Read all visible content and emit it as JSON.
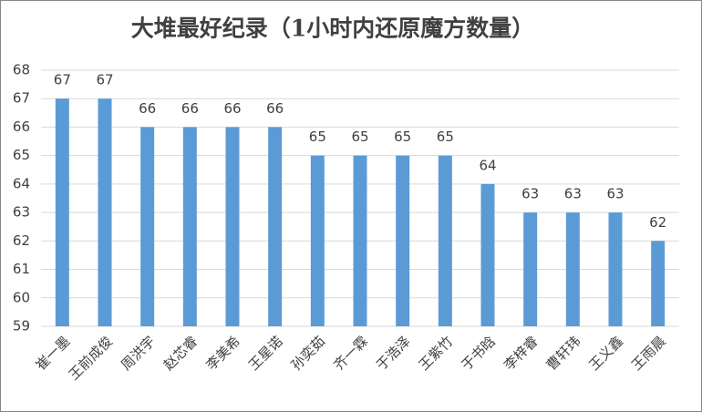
{
  "chart_data": {
    "type": "bar",
    "title": "大堆最好纪录（1小时内还原魔方数量）",
    "categories": [
      "崔一墨",
      "王前成俊",
      "周洪宇",
      "赵芯睿",
      "李美希",
      "王星诺",
      "孙奕茹",
      "齐一霖",
      "于浩泽",
      "王紫竹",
      "于书晗",
      "李梓睿",
      "曹轩玮",
      "王义鑫",
      "王雨晨"
    ],
    "values": [
      67,
      67,
      66,
      66,
      66,
      66,
      65,
      65,
      65,
      65,
      64,
      63,
      63,
      63,
      62
    ],
    "color": "#5b9bd5",
    "ylim": [
      59,
      68
    ],
    "yticks": [
      59,
      60,
      61,
      62,
      63,
      64,
      65,
      66,
      67,
      68
    ],
    "grid": true
  }
}
